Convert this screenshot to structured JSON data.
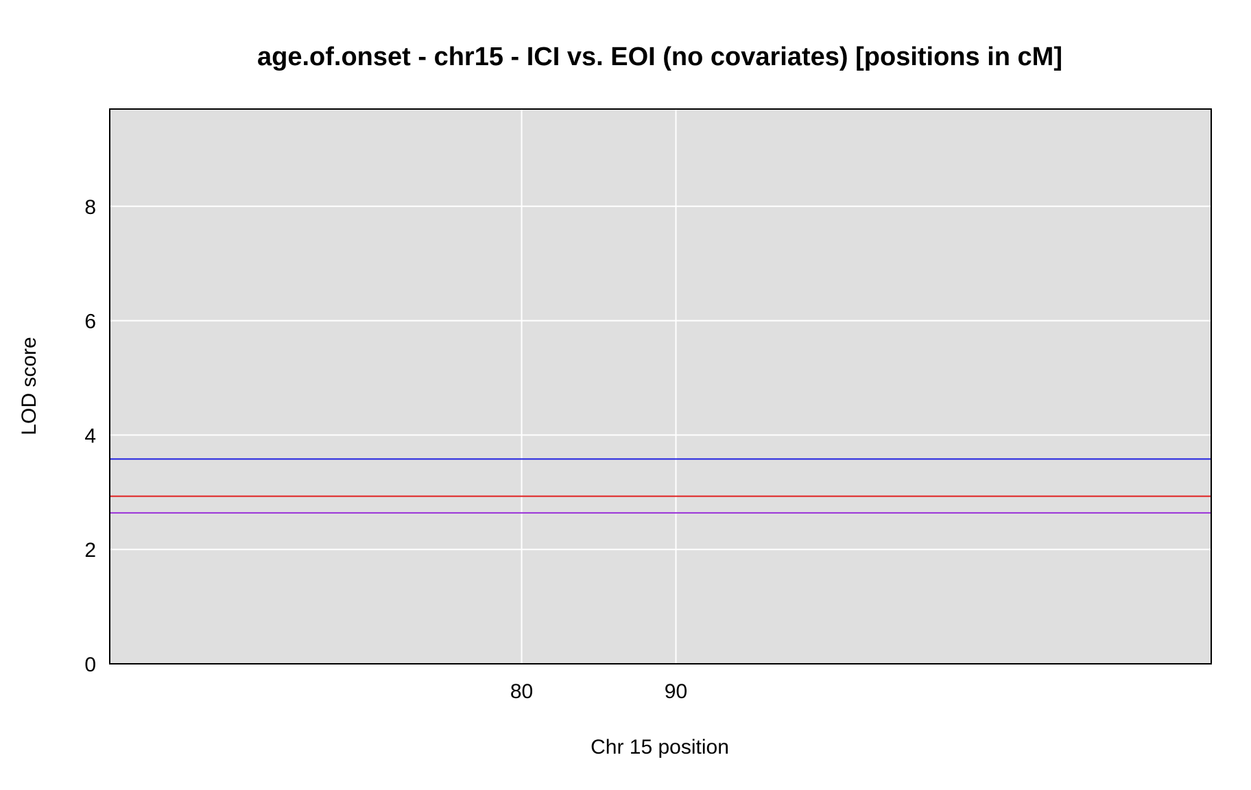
{
  "chart_data": {
    "type": "line",
    "title": "age.of.onset - chr15 - ICI vs. EOI (no covariates) [positions in cM]",
    "xlabel": "Chr 15 position",
    "ylabel": "LOD score",
    "xlim": [
      53.3,
      124.7
    ],
    "ylim": [
      0,
      9.7
    ],
    "x_ticks": [
      80,
      90
    ],
    "y_ticks": [
      0,
      2,
      4,
      6,
      8
    ],
    "grid": true,
    "background_color": "#dfdfdf",
    "grid_color": "#ffffff",
    "series": [],
    "threshold_lines": [
      {
        "value": 3.58,
        "color": "#2020e0"
      },
      {
        "value": 2.93,
        "color": "#e02020"
      },
      {
        "value": 2.64,
        "color": "#9a30d8"
      }
    ]
  }
}
